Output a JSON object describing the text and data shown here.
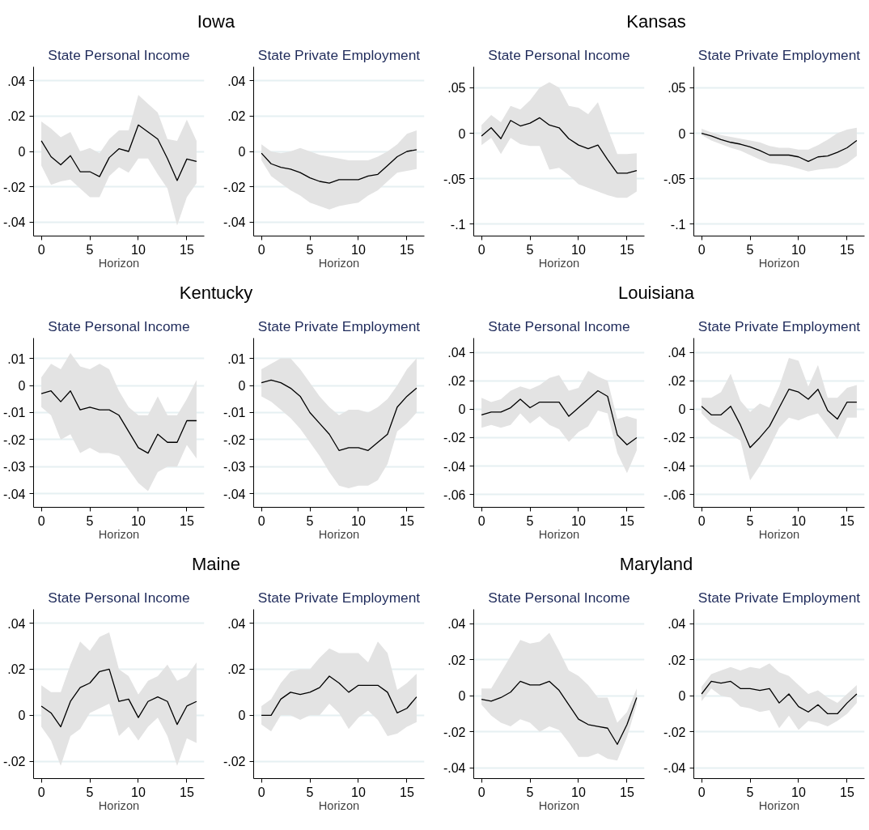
{
  "chart_data": [
    {
      "type": "line",
      "title": "Iowa",
      "subtitle": "State Personal Income",
      "xlabel": "Horizon",
      "x": [
        0,
        1,
        2,
        3,
        4,
        5,
        6,
        7,
        8,
        9,
        10,
        11,
        12,
        13,
        14,
        15,
        16
      ],
      "xlim": [
        -0.8,
        16.8
      ],
      "xticks": [
        0,
        5,
        10,
        15
      ],
      "ylim": [
        -0.048,
        0.048
      ],
      "yticks": [
        {
          "value": -0.04,
          "label": "-.04"
        },
        {
          "value": -0.02,
          "label": "-.02"
        },
        {
          "value": 0,
          "label": "0"
        },
        {
          "value": 0.02,
          "label": ".02"
        },
        {
          "value": 0.04,
          "label": ".04"
        }
      ],
      "grid": "y",
      "series": [
        {
          "color": "#000000",
          "values": [
            0.006,
            -0.003,
            -0.0076,
            -0.0024,
            -0.0115,
            -0.0115,
            -0.0143,
            -0.0035,
            0.0015,
            0,
            0.015,
            0.011,
            0.007,
            -0.004,
            -0.0165,
            -0.0043,
            -0.0057
          ],
          "upper": [
            0.017,
            0.013,
            0.008,
            0.011,
            0,
            0.002,
            -0.001,
            0.007,
            0.012,
            0.012,
            0.032,
            0.027,
            0.022,
            0.007,
            0.006,
            0.018,
            0.006
          ],
          "lower": [
            -0.008,
            -0.019,
            -0.017,
            -0.016,
            -0.021,
            -0.026,
            -0.026,
            -0.014,
            -0.009,
            -0.012,
            -0.004,
            -0.004,
            -0.013,
            -0.021,
            -0.042,
            -0.026,
            -0.018
          ]
        }
      ]
    },
    {
      "type": "line",
      "subtitle": "State Private Employment",
      "xlabel": "Horizon",
      "x": [
        0,
        1,
        2,
        3,
        4,
        5,
        6,
        7,
        8,
        9,
        10,
        11,
        12,
        13,
        14,
        15,
        16
      ],
      "xlim": [
        -0.8,
        16.8
      ],
      "xticks": [
        0,
        5,
        10,
        15
      ],
      "ylim": [
        -0.048,
        0.048
      ],
      "yticks": [
        {
          "value": -0.04,
          "label": "-.04"
        },
        {
          "value": -0.02,
          "label": "-.02"
        },
        {
          "value": 0,
          "label": "0"
        },
        {
          "value": 0.02,
          "label": ".02"
        },
        {
          "value": 0.04,
          "label": ".04"
        }
      ],
      "grid": "y",
      "series": [
        {
          "color": "#000000",
          "values": [
            -0.001,
            -0.007,
            -0.009,
            -0.01,
            -0.012,
            -0.015,
            -0.017,
            -0.018,
            -0.016,
            -0.016,
            -0.016,
            -0.014,
            -0.013,
            -0.008,
            -0.003,
            0,
            0.001
          ],
          "upper": [
            0.004,
            0,
            -0.001,
            0,
            0.002,
            0,
            -0.002,
            -0.003,
            -0.004,
            -0.005,
            -0.005,
            -0.005,
            -0.003,
            0,
            0.004,
            0.01,
            0.012
          ],
          "lower": [
            -0.005,
            -0.014,
            -0.018,
            -0.022,
            -0.025,
            -0.029,
            -0.031,
            -0.033,
            -0.031,
            -0.03,
            -0.029,
            -0.025,
            -0.022,
            -0.017,
            -0.012,
            -0.011,
            -0.01
          ]
        }
      ]
    },
    {
      "type": "line",
      "title": "Kansas",
      "subtitle": "State Personal Income",
      "xlabel": "Horizon",
      "x": [
        0,
        1,
        2,
        3,
        4,
        5,
        6,
        7,
        8,
        9,
        10,
        11,
        12,
        13,
        14,
        15,
        16
      ],
      "xlim": [
        -0.8,
        16.8
      ],
      "xticks": [
        0,
        5,
        10,
        15
      ],
      "ylim": [
        -0.113,
        0.073
      ],
      "yticks": [
        {
          "value": -0.1,
          "label": "-.1"
        },
        {
          "value": -0.05,
          "label": "-.05"
        },
        {
          "value": 0,
          "label": "0"
        },
        {
          "value": 0.05,
          "label": ".05"
        }
      ],
      "grid": "y",
      "series": [
        {
          "color": "#000000",
          "values": [
            -0.003,
            0.006,
            -0.006,
            0.014,
            0.008,
            0.011,
            0.017,
            0.009,
            0.006,
            -0.006,
            -0.013,
            -0.017,
            -0.013,
            -0.029,
            -0.044,
            -0.044,
            -0.041
          ],
          "upper": [
            0.009,
            0.02,
            0.012,
            0.03,
            0.026,
            0.036,
            0.05,
            0.056,
            0.05,
            0.03,
            0.028,
            0.021,
            0.034,
            0.005,
            -0.023,
            -0.023,
            -0.022
          ],
          "lower": [
            -0.013,
            -0.005,
            -0.023,
            -0.005,
            -0.012,
            -0.014,
            -0.014,
            -0.04,
            -0.038,
            -0.046,
            -0.056,
            -0.06,
            -0.064,
            -0.068,
            -0.071,
            -0.071,
            -0.064
          ]
        }
      ]
    },
    {
      "type": "line",
      "subtitle": "State Private Employment",
      "xlabel": "Horizon",
      "x": [
        0,
        1,
        2,
        3,
        4,
        5,
        6,
        7,
        8,
        9,
        10,
        11,
        12,
        13,
        14,
        15,
        16
      ],
      "xlim": [
        -0.8,
        16.8
      ],
      "xticks": [
        0,
        5,
        10,
        15
      ],
      "ylim": [
        -0.113,
        0.073
      ],
      "yticks": [
        {
          "value": -0.1,
          "label": "-.1"
        },
        {
          "value": -0.05,
          "label": "-.05"
        },
        {
          "value": 0,
          "label": "0"
        },
        {
          "value": 0.05,
          "label": ".05"
        }
      ],
      "grid": "y",
      "series": [
        {
          "color": "#000000",
          "values": [
            0,
            -0.003,
            -0.007,
            -0.01,
            -0.012,
            -0.015,
            -0.019,
            -0.024,
            -0.024,
            -0.024,
            -0.026,
            -0.031,
            -0.026,
            -0.025,
            -0.021,
            -0.016,
            -0.008
          ],
          "upper": [
            0.005,
            0.001,
            -0.002,
            -0.004,
            -0.006,
            -0.008,
            -0.01,
            -0.014,
            -0.016,
            -0.016,
            -0.018,
            -0.018,
            -0.013,
            -0.007,
            0,
            0.004,
            0.006
          ],
          "lower": [
            -0.002,
            -0.008,
            -0.012,
            -0.016,
            -0.019,
            -0.024,
            -0.029,
            -0.033,
            -0.034,
            -0.036,
            -0.039,
            -0.042,
            -0.04,
            -0.039,
            -0.038,
            -0.033,
            -0.025
          ]
        }
      ]
    },
    {
      "type": "line",
      "title": "Kentucky",
      "subtitle": "State Personal Income",
      "xlabel": "Horizon",
      "x": [
        0,
        1,
        2,
        3,
        4,
        5,
        6,
        7,
        8,
        9,
        10,
        11,
        12,
        13,
        14,
        15,
        16
      ],
      "xlim": [
        -0.8,
        16.8
      ],
      "xticks": [
        0,
        5,
        10,
        15
      ],
      "ylim": [
        -0.045,
        0.0175
      ],
      "yticks": [
        {
          "value": -0.04,
          "label": "-.04"
        },
        {
          "value": -0.03,
          "label": "-.03"
        },
        {
          "value": -0.02,
          "label": "-.02"
        },
        {
          "value": -0.01,
          "label": "-.01"
        },
        {
          "value": 0,
          "label": "0"
        },
        {
          "value": 0.01,
          "label": ".01"
        }
      ],
      "grid": "y",
      "series": [
        {
          "color": "#000000",
          "values": [
            -0.003,
            -0.002,
            -0.006,
            -0.002,
            -0.009,
            -0.008,
            -0.009,
            -0.009,
            -0.011,
            -0.017,
            -0.023,
            -0.025,
            -0.018,
            -0.021,
            -0.021,
            -0.013,
            -0.013
          ],
          "upper": [
            0.003,
            0.008,
            0.006,
            0.012,
            0.007,
            0.006,
            0.008,
            0.006,
            -0.002,
            -0.008,
            -0.011,
            -0.011,
            -0.004,
            -0.011,
            -0.011,
            -0.005,
            0.002
          ],
          "lower": [
            -0.008,
            -0.011,
            -0.02,
            -0.018,
            -0.025,
            -0.023,
            -0.025,
            -0.025,
            -0.026,
            -0.031,
            -0.036,
            -0.039,
            -0.032,
            -0.03,
            -0.03,
            -0.022,
            -0.027
          ]
        }
      ]
    },
    {
      "type": "line",
      "subtitle": "State Private Employment",
      "xlabel": "Horizon",
      "x": [
        0,
        1,
        2,
        3,
        4,
        5,
        6,
        7,
        8,
        9,
        10,
        11,
        12,
        13,
        14,
        15,
        16
      ],
      "xlim": [
        -0.8,
        16.8
      ],
      "xticks": [
        0,
        5,
        10,
        15
      ],
      "ylim": [
        -0.045,
        0.0175
      ],
      "yticks": [
        {
          "value": -0.04,
          "label": "-.04"
        },
        {
          "value": -0.03,
          "label": "-.03"
        },
        {
          "value": -0.02,
          "label": "-.02"
        },
        {
          "value": -0.01,
          "label": "-.01"
        },
        {
          "value": 0,
          "label": "0"
        },
        {
          "value": 0.01,
          "label": ".01"
        }
      ],
      "grid": "y",
      "series": [
        {
          "color": "#000000",
          "values": [
            0.001,
            0.002,
            0.001,
            -0.001,
            -0.004,
            -0.01,
            -0.014,
            -0.018,
            -0.024,
            -0.023,
            -0.023,
            -0.024,
            -0.021,
            -0.018,
            -0.008,
            -0.004,
            -0.001
          ],
          "upper": [
            0.006,
            0.008,
            0.01,
            0.01,
            0.006,
            0.001,
            -0.004,
            -0.008,
            -0.011,
            -0.009,
            -0.009,
            -0.01,
            -0.008,
            -0.005,
            0,
            0.006,
            0.01
          ],
          "lower": [
            -0.004,
            -0.006,
            -0.009,
            -0.012,
            -0.016,
            -0.021,
            -0.026,
            -0.032,
            -0.037,
            -0.038,
            -0.037,
            -0.037,
            -0.035,
            -0.029,
            -0.017,
            -0.014,
            -0.01
          ]
        }
      ]
    },
    {
      "type": "line",
      "title": "Louisiana",
      "subtitle": "State Personal Income",
      "xlabel": "Horizon",
      "x": [
        0,
        1,
        2,
        3,
        4,
        5,
        6,
        7,
        8,
        9,
        10,
        11,
        12,
        13,
        14,
        15,
        16
      ],
      "xlim": [
        -0.8,
        16.8
      ],
      "xticks": [
        0,
        5,
        10,
        15
      ],
      "ylim": [
        -0.069,
        0.05
      ],
      "yticks": [
        {
          "value": -0.06,
          "label": "-.06"
        },
        {
          "value": -0.04,
          "label": "-.04"
        },
        {
          "value": -0.02,
          "label": "-.02"
        },
        {
          "value": 0,
          "label": "0"
        },
        {
          "value": 0.02,
          "label": ".02"
        },
        {
          "value": 0.04,
          "label": ".04"
        }
      ],
      "grid": "y",
      "series": [
        {
          "color": "#000000",
          "values": [
            -0.004,
            -0.002,
            -0.002,
            0.001,
            0.007,
            0.001,
            0.005,
            0.005,
            0.005,
            -0.005,
            0.001,
            0.007,
            0.013,
            0.009,
            -0.018,
            -0.025,
            -0.02
          ],
          "upper": [
            0.008,
            0.005,
            0.007,
            0.013,
            0.016,
            0.014,
            0.017,
            0.022,
            0.024,
            0.013,
            0.015,
            0.027,
            0.023,
            0.02,
            -0.007,
            -0.005,
            -0.007
          ],
          "lower": [
            -0.013,
            -0.011,
            -0.013,
            -0.011,
            -0.003,
            -0.01,
            -0.005,
            -0.011,
            -0.014,
            -0.023,
            -0.016,
            -0.012,
            -0.001,
            -0.003,
            -0.031,
            -0.045,
            -0.029
          ]
        }
      ]
    },
    {
      "type": "line",
      "subtitle": "State Private Employment",
      "xlabel": "Horizon",
      "x": [
        0,
        1,
        2,
        3,
        4,
        5,
        6,
        7,
        8,
        9,
        10,
        11,
        12,
        13,
        14,
        15,
        16
      ],
      "xlim": [
        -0.8,
        16.8
      ],
      "xticks": [
        0,
        5,
        10,
        15
      ],
      "ylim": [
        -0.069,
        0.05
      ],
      "yticks": [
        {
          "value": -0.06,
          "label": "-.06"
        },
        {
          "value": -0.04,
          "label": "-.04"
        },
        {
          "value": -0.02,
          "label": "-.02"
        },
        {
          "value": 0,
          "label": "0"
        },
        {
          "value": 0.02,
          "label": ".02"
        },
        {
          "value": 0.04,
          "label": ".04"
        }
      ],
      "grid": "y",
      "series": [
        {
          "color": "#000000",
          "values": [
            0.002,
            -0.004,
            -0.004,
            0.002,
            -0.011,
            -0.027,
            -0.02,
            -0.012,
            0.001,
            0.014,
            0.012,
            0.007,
            0.014,
            -0.001,
            -0.007,
            0.005,
            0.005
          ],
          "upper": [
            0.008,
            0.008,
            0.012,
            0.025,
            0.006,
            -0.002,
            0.004,
            0.001,
            0.016,
            0.036,
            0.034,
            0.016,
            0.031,
            0.008,
            0.008,
            0.015,
            0.017
          ],
          "lower": [
            -0.003,
            -0.01,
            -0.014,
            -0.018,
            -0.022,
            -0.05,
            -0.04,
            -0.027,
            -0.013,
            -0.006,
            -0.008,
            -0.005,
            -0.003,
            -0.012,
            -0.021,
            -0.006,
            -0.006
          ]
        }
      ]
    },
    {
      "type": "line",
      "title": "Maine",
      "subtitle": "State Personal Income",
      "xlabel": "Horizon",
      "x": [
        0,
        1,
        2,
        3,
        4,
        5,
        6,
        7,
        8,
        9,
        10,
        11,
        12,
        13,
        14,
        15,
        16
      ],
      "xlim": [
        -0.8,
        16.8
      ],
      "xticks": [
        0,
        5,
        10,
        15
      ],
      "ylim": [
        -0.0275,
        0.046
      ],
      "yticks": [
        {
          "value": -0.02,
          "label": "-.02"
        },
        {
          "value": 0,
          "label": "0"
        },
        {
          "value": 0.02,
          "label": ".02"
        },
        {
          "value": 0.04,
          "label": ".04"
        }
      ],
      "grid": "y",
      "series": [
        {
          "color": "#000000",
          "values": [
            0.004,
            0.001,
            -0.005,
            0.006,
            0.012,
            0.014,
            0.019,
            0.02,
            0.006,
            0.007,
            -0.001,
            0.006,
            0.008,
            0.006,
            -0.004,
            0.004,
            0.006
          ],
          "upper": [
            0.013,
            0.01,
            0.01,
            0.022,
            0.032,
            0.028,
            0.034,
            0.036,
            0.02,
            0.017,
            0.009,
            0.015,
            0.017,
            0.022,
            0.015,
            0.017,
            0.023
          ],
          "lower": [
            -0.005,
            -0.011,
            -0.022,
            -0.009,
            -0.006,
            0.001,
            0.003,
            0.005,
            -0.009,
            -0.005,
            -0.011,
            -0.005,
            -0.001,
            -0.009,
            -0.022,
            -0.01,
            -0.012
          ]
        }
      ]
    },
    {
      "type": "line",
      "subtitle": "State Private Employment",
      "xlabel": "Horizon",
      "x": [
        0,
        1,
        2,
        3,
        4,
        5,
        6,
        7,
        8,
        9,
        10,
        11,
        12,
        13,
        14,
        15,
        16
      ],
      "xlim": [
        -0.8,
        16.8
      ],
      "xticks": [
        0,
        5,
        10,
        15
      ],
      "ylim": [
        -0.0275,
        0.046
      ],
      "yticks": [
        {
          "value": -0.02,
          "label": "-.02"
        },
        {
          "value": 0,
          "label": "0"
        },
        {
          "value": 0.02,
          "label": ".02"
        },
        {
          "value": 0.04,
          "label": ".04"
        }
      ],
      "grid": "y",
      "series": [
        {
          "color": "#000000",
          "values": [
            0,
            0,
            0.007,
            0.01,
            0.009,
            0.01,
            0.012,
            0.017,
            0.014,
            0.01,
            0.013,
            0.013,
            0.013,
            0.01,
            0.001,
            0.003,
            0.008
          ],
          "upper": [
            0.004,
            0.007,
            0.014,
            0.019,
            0.02,
            0.02,
            0.025,
            0.029,
            0.027,
            0.027,
            0.027,
            0.023,
            0.032,
            0.027,
            0.011,
            0.014,
            0.018
          ],
          "lower": [
            -0.004,
            -0.007,
            0,
            0,
            -0.002,
            0,
            0,
            0.005,
            0.001,
            -0.006,
            -0.001,
            0.002,
            -0.002,
            -0.009,
            -0.008,
            -0.005,
            -0.003
          ]
        }
      ]
    },
    {
      "type": "line",
      "title": "Maryland",
      "subtitle": "State Personal Income",
      "xlabel": "Horizon",
      "x": [
        0,
        1,
        2,
        3,
        4,
        5,
        6,
        7,
        8,
        9,
        10,
        11,
        12,
        13,
        14,
        15,
        16
      ],
      "xlim": [
        -0.8,
        16.8
      ],
      "xticks": [
        0,
        5,
        10,
        15
      ],
      "ylim": [
        -0.046,
        0.048
      ],
      "yticks": [
        {
          "value": -0.04,
          "label": "-.04"
        },
        {
          "value": -0.02,
          "label": "-.02"
        },
        {
          "value": 0,
          "label": "0"
        },
        {
          "value": 0.02,
          "label": ".02"
        },
        {
          "value": 0.04,
          "label": ".04"
        }
      ],
      "grid": "y",
      "series": [
        {
          "color": "#000000",
          "values": [
            -0.002,
            -0.003,
            -0.001,
            0.002,
            0.008,
            0.006,
            0.006,
            0.008,
            0.003,
            -0.005,
            -0.013,
            -0.016,
            -0.017,
            -0.018,
            -0.027,
            -0.016,
            -0.001
          ],
          "upper": [
            0.004,
            0.004,
            0.013,
            0.022,
            0.031,
            0.029,
            0.03,
            0.035,
            0.025,
            0.014,
            0.011,
            0.006,
            -0.001,
            -0.001,
            -0.015,
            -0.009,
            0.004
          ],
          "lower": [
            -0.005,
            -0.011,
            -0.015,
            -0.017,
            -0.013,
            -0.015,
            -0.02,
            -0.017,
            -0.019,
            -0.026,
            -0.034,
            -0.034,
            -0.032,
            -0.035,
            -0.036,
            -0.023,
            -0.005
          ]
        }
      ]
    },
    {
      "type": "line",
      "subtitle": "State Private Employment",
      "xlabel": "Horizon",
      "x": [
        0,
        1,
        2,
        3,
        4,
        5,
        6,
        7,
        8,
        9,
        10,
        11,
        12,
        13,
        14,
        15,
        16
      ],
      "xlim": [
        -0.8,
        16.8
      ],
      "xticks": [
        0,
        5,
        10,
        15
      ],
      "ylim": [
        -0.046,
        0.048
      ],
      "yticks": [
        {
          "value": -0.04,
          "label": "-.04"
        },
        {
          "value": -0.02,
          "label": "-.02"
        },
        {
          "value": 0,
          "label": "0"
        },
        {
          "value": 0.02,
          "label": ".02"
        },
        {
          "value": 0.04,
          "label": ".04"
        }
      ],
      "grid": "y",
      "series": [
        {
          "color": "#000000",
          "values": [
            0.001,
            0.008,
            0.007,
            0.008,
            0.004,
            0.004,
            0.003,
            0.004,
            -0.004,
            0.001,
            -0.006,
            -0.009,
            -0.005,
            -0.01,
            -0.01,
            -0.004,
            0.001
          ],
          "upper": [
            0.005,
            0.012,
            0.014,
            0.016,
            0.014,
            0.016,
            0.015,
            0.018,
            0.013,
            0.011,
            0.006,
            0.001,
            0.003,
            -0.001,
            -0.004,
            0.001,
            0.006
          ],
          "lower": [
            -0.003,
            0.004,
            0,
            -0.001,
            -0.006,
            -0.007,
            -0.009,
            -0.008,
            -0.018,
            -0.011,
            -0.019,
            -0.014,
            -0.015,
            -0.017,
            -0.014,
            -0.01,
            -0.004
          ]
        }
      ]
    }
  ]
}
